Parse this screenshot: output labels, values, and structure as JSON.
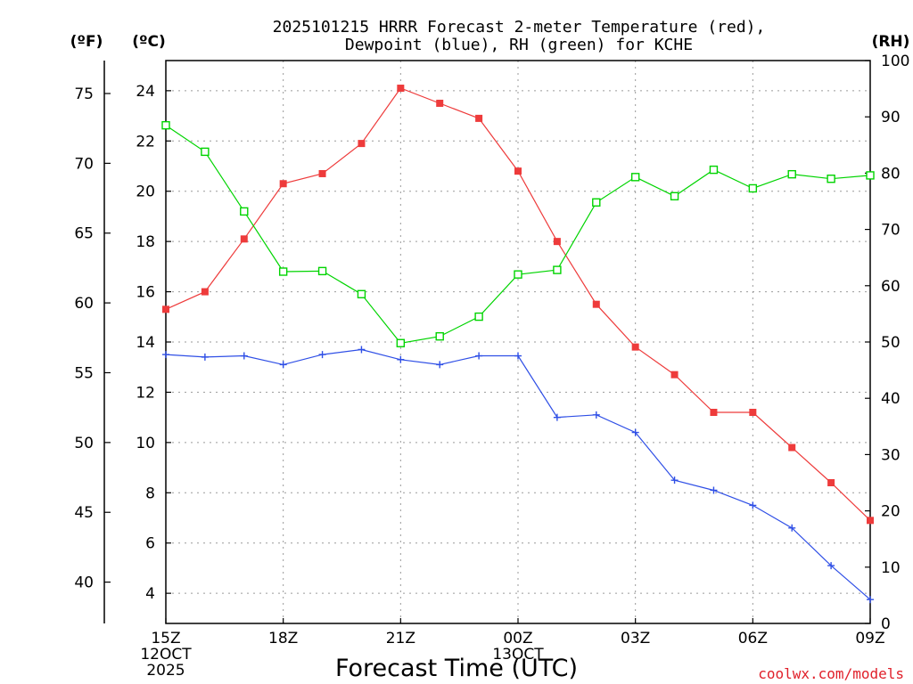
{
  "chart_data": {
    "type": "line",
    "title_line1": "2025101215 HRRR Forecast 2-meter Temperature (red),",
    "title_line2": "Dewpoint (blue), RH (green) for KCHE",
    "xlabel": "Forecast Time (UTC)",
    "credit": "coolwx.com/models",
    "units": {
      "fahrenheit": "(ºF)",
      "celsius": "(ºC)",
      "rh": "(RH)"
    },
    "x": [
      0,
      1,
      2,
      3,
      4,
      5,
      6,
      7,
      8,
      9,
      10,
      11,
      12,
      13,
      14,
      15,
      16,
      17,
      18
    ],
    "x_ticks": [
      {
        "x": 0,
        "lines": [
          "15Z",
          "12OCT",
          "2025"
        ]
      },
      {
        "x": 3,
        "lines": [
          "18Z"
        ]
      },
      {
        "x": 6,
        "lines": [
          "21Z"
        ]
      },
      {
        "x": 9,
        "lines": [
          "00Z",
          "13OCT"
        ]
      },
      {
        "x": 12,
        "lines": [
          "03Z"
        ]
      },
      {
        "x": 15,
        "lines": [
          "06Z"
        ]
      },
      {
        "x": 18,
        "lines": [
          "09Z"
        ]
      }
    ],
    "celsius_axis": {
      "range": [
        2.8,
        25.2
      ],
      "ticks": [
        "4",
        "6",
        "8",
        "10",
        "12",
        "14",
        "16",
        "18",
        "20",
        "22",
        "24"
      ]
    },
    "fahrenheit_axis": {
      "ticks": [
        "40",
        "45",
        "50",
        "55",
        "60",
        "65",
        "70",
        "75"
      ]
    },
    "rh_axis": {
      "range": [
        0,
        100
      ],
      "ticks": [
        "0",
        "10",
        "20",
        "30",
        "40",
        "50",
        "60",
        "70",
        "80",
        "90",
        "100"
      ]
    },
    "series": [
      {
        "name": "Temperature",
        "axis": "celsius",
        "color": "#ee3b3b",
        "marker": "filled-square",
        "values": [
          15.3,
          16.0,
          18.1,
          20.3,
          20.7,
          21.9,
          24.1,
          23.5,
          22.9,
          20.8,
          18.0,
          15.5,
          13.8,
          12.7,
          11.2,
          11.2,
          9.8,
          8.4,
          6.9
        ]
      },
      {
        "name": "Dewpoint",
        "axis": "celsius",
        "color": "#2f4fe6",
        "marker": "plus",
        "values": [
          13.5,
          13.4,
          13.45,
          13.1,
          13.5,
          13.7,
          13.3,
          13.1,
          13.45,
          13.45,
          11.0,
          11.1,
          10.4,
          8.5,
          8.1,
          7.5,
          6.6,
          5.1,
          3.75
        ]
      },
      {
        "name": "RH",
        "axis": "rh",
        "color": "#00d400",
        "marker": "open-square",
        "values": [
          88.5,
          83.8,
          73.2,
          62.5,
          62.6,
          58.5,
          49.8,
          51.0,
          54.5,
          62.0,
          62.8,
          74.8,
          79.3,
          75.9,
          80.6,
          77.3,
          79.8,
          79.0,
          79.6
        ]
      }
    ]
  }
}
